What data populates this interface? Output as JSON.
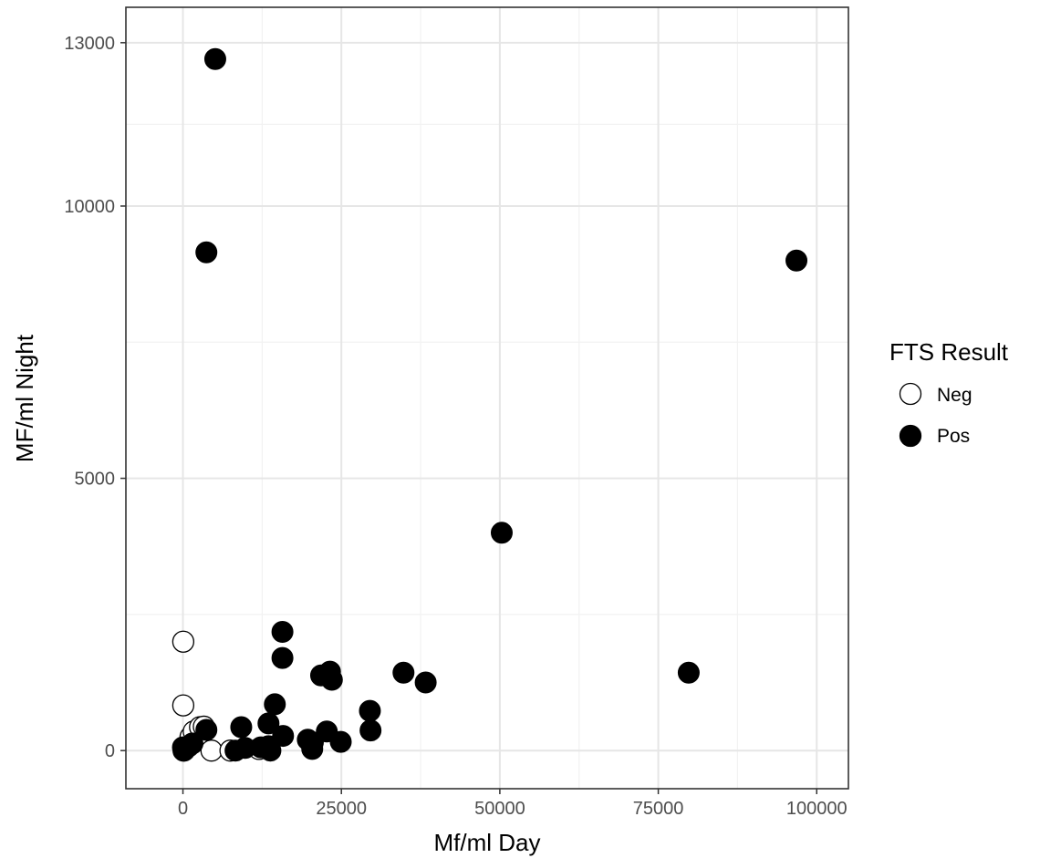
{
  "chart_data": {
    "type": "scatter",
    "title": "",
    "xlabel": "Mf/ml Day",
    "ylabel": "MF/ml Night",
    "xlim": [
      -9000,
      105000
    ],
    "ylim": [
      -700,
      13650
    ],
    "x_ticks": [
      0,
      25000,
      50000,
      75000,
      100000
    ],
    "x_tick_labels": [
      "0",
      "25000",
      "50000",
      "75000",
      "100000"
    ],
    "y_ticks": [
      0,
      5000,
      10000,
      13000
    ],
    "y_tick_labels": [
      "0",
      "5000",
      "10000",
      "13000"
    ],
    "x_minor_gridlines": [
      12500,
      37500,
      62500,
      87500
    ],
    "y_minor_gridlines": [
      2500,
      7500,
      11500
    ],
    "grid": true,
    "theme": "bw",
    "legend": {
      "title": "FTS Result",
      "position": "right",
      "entries": [
        "Neg",
        "Pos"
      ]
    },
    "series": [
      {
        "name": "Neg",
        "marker": "open-circle",
        "stroke": "#000000",
        "fill": "#ffffff",
        "points": [
          {
            "x": 50,
            "y": 2000
          },
          {
            "x": 50,
            "y": 830
          },
          {
            "x": 100,
            "y": 0
          },
          {
            "x": 400,
            "y": 50
          },
          {
            "x": 900,
            "y": 80
          },
          {
            "x": 1200,
            "y": 250
          },
          {
            "x": 1700,
            "y": 350
          },
          {
            "x": 2700,
            "y": 430
          },
          {
            "x": 3300,
            "y": 440
          },
          {
            "x": 4500,
            "y": 0
          },
          {
            "x": 7500,
            "y": 0
          },
          {
            "x": 12000,
            "y": 30
          }
        ]
      },
      {
        "name": "Pos",
        "marker": "filled-circle",
        "stroke": "#000000",
        "fill": "#000000",
        "points": [
          {
            "x": 5100,
            "y": 12700
          },
          {
            "x": 3700,
            "y": 9150
          },
          {
            "x": 96800,
            "y": 9000
          },
          {
            "x": 50300,
            "y": 4000
          },
          {
            "x": 79800,
            "y": 1430
          },
          {
            "x": 15700,
            "y": 2180
          },
          {
            "x": 15700,
            "y": 1700
          },
          {
            "x": 21800,
            "y": 1380
          },
          {
            "x": 23200,
            "y": 1450
          },
          {
            "x": 23500,
            "y": 1300
          },
          {
            "x": 34800,
            "y": 1430
          },
          {
            "x": 38300,
            "y": 1250
          },
          {
            "x": 14500,
            "y": 850
          },
          {
            "x": 29500,
            "y": 730
          },
          {
            "x": 29600,
            "y": 370
          },
          {
            "x": 9200,
            "y": 430
          },
          {
            "x": 13500,
            "y": 500
          },
          {
            "x": 15800,
            "y": 270
          },
          {
            "x": 22700,
            "y": 350
          },
          {
            "x": 19700,
            "y": 200
          },
          {
            "x": 20500,
            "y": 150
          },
          {
            "x": 24900,
            "y": 160
          },
          {
            "x": 20400,
            "y": 30
          },
          {
            "x": 13500,
            "y": 80
          },
          {
            "x": 12300,
            "y": 60
          },
          {
            "x": 13800,
            "y": 0
          },
          {
            "x": 8300,
            "y": 0
          },
          {
            "x": 9800,
            "y": 50
          },
          {
            "x": 3700,
            "y": 380
          },
          {
            "x": 1500,
            "y": 130
          },
          {
            "x": 0,
            "y": 60
          },
          {
            "x": 200,
            "y": 0
          }
        ]
      }
    ]
  }
}
